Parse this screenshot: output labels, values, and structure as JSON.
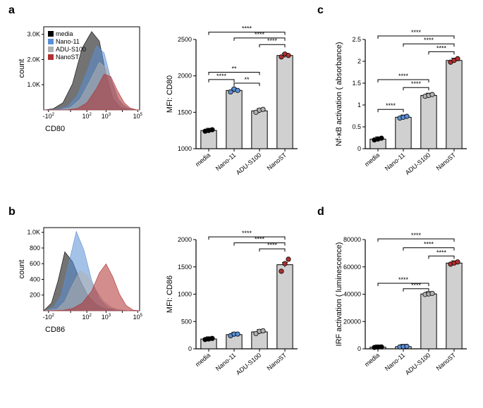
{
  "panels": {
    "a": {
      "label": "a"
    },
    "b": {
      "label": "b"
    },
    "c": {
      "label": "c"
    },
    "d": {
      "label": "d"
    }
  },
  "colors": {
    "media": "#000000",
    "nano11": "#5a8fd6",
    "adu": "#b0b0b0",
    "nanost": "#b03030",
    "bar_fill": "#d0d0d0",
    "bar_stroke": "#000000",
    "dot_media": "#000000",
    "dot_nano11": "#5a8fd6",
    "dot_adu": "#b0b0b0",
    "dot_nanost": "#b03030",
    "bg": "#ffffff"
  },
  "legend": [
    "media",
    "Nano-11",
    "ADU-S100",
    "NanoST"
  ],
  "histogram_a": {
    "xlabel": "CD80",
    "ylabel": "count",
    "xticks": [
      "-10",
      "2",
      "",
      "10",
      "2",
      "10",
      "3",
      "",
      "10",
      "5"
    ],
    "yticks": [
      "1.0K",
      "2.0K",
      "3.0K"
    ],
    "ymax": 3500,
    "curves": {
      "media": [
        [
          0,
          0
        ],
        [
          10,
          50
        ],
        [
          20,
          300
        ],
        [
          30,
          1100
        ],
        [
          40,
          2600
        ],
        [
          50,
          3300
        ],
        [
          58,
          2900
        ],
        [
          65,
          1500
        ],
        [
          72,
          500
        ],
        [
          80,
          100
        ],
        [
          90,
          10
        ],
        [
          100,
          0
        ]
      ],
      "nano11": [
        [
          0,
          0
        ],
        [
          15,
          20
        ],
        [
          25,
          150
        ],
        [
          35,
          600
        ],
        [
          45,
          1600
        ],
        [
          55,
          2700
        ],
        [
          63,
          2400
        ],
        [
          70,
          1300
        ],
        [
          78,
          450
        ],
        [
          85,
          120
        ],
        [
          95,
          10
        ],
        [
          100,
          0
        ]
      ],
      "adu": [
        [
          0,
          0
        ],
        [
          18,
          10
        ],
        [
          28,
          100
        ],
        [
          38,
          450
        ],
        [
          48,
          1200
        ],
        [
          58,
          2000
        ],
        [
          66,
          1750
        ],
        [
          73,
          900
        ],
        [
          80,
          300
        ],
        [
          88,
          80
        ],
        [
          96,
          5
        ],
        [
          100,
          0
        ]
      ],
      "nanost": [
        [
          0,
          0
        ],
        [
          25,
          5
        ],
        [
          35,
          60
        ],
        [
          45,
          300
        ],
        [
          55,
          900
        ],
        [
          63,
          1500
        ],
        [
          70,
          1400
        ],
        [
          77,
          800
        ],
        [
          84,
          300
        ],
        [
          90,
          80
        ],
        [
          97,
          5
        ],
        [
          100,
          0
        ]
      ]
    }
  },
  "histogram_b": {
    "xlabel": "CD86",
    "ylabel": "count",
    "yticks": [
      "200",
      "400",
      "600",
      "800",
      "1.0K"
    ],
    "ymax": 1100,
    "curves": {
      "media": [
        [
          0,
          0
        ],
        [
          8,
          100
        ],
        [
          15,
          400
        ],
        [
          22,
          780
        ],
        [
          30,
          650
        ],
        [
          38,
          400
        ],
        [
          46,
          200
        ],
        [
          55,
          80
        ],
        [
          65,
          20
        ],
        [
          75,
          5
        ],
        [
          90,
          0
        ],
        [
          100,
          0
        ]
      ],
      "nano11": [
        [
          0,
          0
        ],
        [
          10,
          40
        ],
        [
          18,
          200
        ],
        [
          26,
          620
        ],
        [
          34,
          1050
        ],
        [
          42,
          800
        ],
        [
          50,
          400
        ],
        [
          58,
          160
        ],
        [
          66,
          50
        ],
        [
          75,
          10
        ],
        [
          88,
          0
        ],
        [
          100,
          0
        ]
      ],
      "adu": [
        [
          0,
          0
        ],
        [
          14,
          20
        ],
        [
          22,
          120
        ],
        [
          30,
          340
        ],
        [
          38,
          530
        ],
        [
          46,
          460
        ],
        [
          54,
          280
        ],
        [
          62,
          130
        ],
        [
          70,
          50
        ],
        [
          78,
          15
        ],
        [
          90,
          0
        ],
        [
          100,
          0
        ]
      ],
      "nanost": [
        [
          0,
          0
        ],
        [
          20,
          5
        ],
        [
          30,
          30
        ],
        [
          40,
          100
        ],
        [
          50,
          260
        ],
        [
          58,
          500
        ],
        [
          65,
          620
        ],
        [
          72,
          450
        ],
        [
          79,
          220
        ],
        [
          86,
          70
        ],
        [
          93,
          10
        ],
        [
          100,
          0
        ]
      ]
    }
  },
  "bar_a": {
    "ylabel": "MFI: CD80",
    "ylim": [
      1000,
      2500
    ],
    "yticks": [
      1000,
      1500,
      2000,
      2500
    ],
    "categories": [
      "media",
      "Nano-11",
      "ADU-S100",
      "NanoST"
    ],
    "values": [
      1250,
      1800,
      1520,
      2280
    ],
    "dots": [
      [
        1240,
        1250,
        1260
      ],
      [
        1780,
        1820,
        1800
      ],
      [
        1500,
        1530,
        1540
      ],
      [
        2260,
        2300,
        2280
      ]
    ],
    "sig": [
      {
        "from": 0,
        "to": 1,
        "y": 1950,
        "label": "****"
      },
      {
        "from": 0,
        "to": 2,
        "y": 2050,
        "label": "**"
      },
      {
        "from": 1,
        "to": 2,
        "y": 1900,
        "label": "**"
      },
      {
        "from": 0,
        "to": 3,
        "y": 2600,
        "label": "****"
      },
      {
        "from": 1,
        "to": 3,
        "y": 2520,
        "label": "****"
      },
      {
        "from": 2,
        "to": 3,
        "y": 2430,
        "label": "****"
      }
    ]
  },
  "bar_b": {
    "ylabel": "MFI: CD86",
    "ylim": [
      0,
      2000
    ],
    "yticks": [
      0,
      500,
      1000,
      1500,
      2000
    ],
    "categories": [
      "media",
      "Nano-11",
      "ADU-S100",
      "NanoST"
    ],
    "values": [
      180,
      260,
      310,
      1540
    ],
    "dots": [
      [
        170,
        180,
        190
      ],
      [
        240,
        270,
        270
      ],
      [
        280,
        320,
        330
      ],
      [
        1420,
        1560,
        1640
      ]
    ],
    "sig": [
      {
        "from": 0,
        "to": 3,
        "y": 2050,
        "label": "****"
      },
      {
        "from": 1,
        "to": 3,
        "y": 1940,
        "label": "****"
      },
      {
        "from": 2,
        "to": 3,
        "y": 1830,
        "label": "****"
      }
    ]
  },
  "bar_c": {
    "ylabel": "Nf-κB activation ( absorbance)",
    "ylim": [
      0,
      2.5
    ],
    "yticks": [
      0,
      0.5,
      1.0,
      1.5,
      2.0,
      2.5
    ],
    "categories": [
      "media",
      "Nano-11",
      "ADU-S100",
      "NanoST"
    ],
    "values": [
      0.22,
      0.72,
      1.22,
      2.02
    ],
    "dots": [
      [
        0.2,
        0.22,
        0.24
      ],
      [
        0.7,
        0.72,
        0.74
      ],
      [
        1.2,
        1.22,
        1.24
      ],
      [
        1.98,
        2.02,
        2.06
      ]
    ],
    "sig": [
      {
        "from": 0,
        "to": 1,
        "y": 0.9,
        "label": "****"
      },
      {
        "from": 1,
        "to": 2,
        "y": 1.4,
        "label": "****"
      },
      {
        "from": 0,
        "to": 2,
        "y": 1.58,
        "label": "****"
      },
      {
        "from": 2,
        "to": 3,
        "y": 2.22,
        "label": "****"
      },
      {
        "from": 1,
        "to": 3,
        "y": 2.4,
        "label": "****"
      },
      {
        "from": 0,
        "to": 3,
        "y": 2.58,
        "label": "****"
      }
    ]
  },
  "bar_d": {
    "ylabel": "IRF activation ( luminescence)",
    "ylim": [
      0,
      80000
    ],
    "yticks": [
      0,
      20000,
      40000,
      60000,
      80000
    ],
    "categories": [
      "media",
      "Nano-11",
      "ADU-S100",
      "NanoST"
    ],
    "values": [
      1200,
      1600,
      40200,
      62800
    ],
    "dots": [
      [
        1000,
        1200,
        1400
      ],
      [
        1400,
        1600,
        1800
      ],
      [
        39800,
        40200,
        40600
      ],
      [
        62000,
        62800,
        63600
      ]
    ],
    "sig": [
      {
        "from": 0,
        "to": 2,
        "y": 48000,
        "label": "****"
      },
      {
        "from": 1,
        "to": 2,
        "y": 44000,
        "label": "****"
      },
      {
        "from": 2,
        "to": 3,
        "y": 68000,
        "label": "****"
      },
      {
        "from": 1,
        "to": 3,
        "y": 74000,
        "label": "****"
      },
      {
        "from": 0,
        "to": 3,
        "y": 80500,
        "label": "****"
      }
    ]
  },
  "hist_xticks": [
    {
      "pos": 5,
      "major": "-10",
      "sup": "2"
    },
    {
      "pos": 28,
      "major": "",
      "sup": ""
    },
    {
      "pos": 45,
      "major": "10",
      "sup": "2"
    },
    {
      "pos": 65,
      "major": "10",
      "sup": "3"
    },
    {
      "pos": 82,
      "major": "",
      "sup": ""
    },
    {
      "pos": 98,
      "major": "10",
      "sup": "5"
    }
  ]
}
